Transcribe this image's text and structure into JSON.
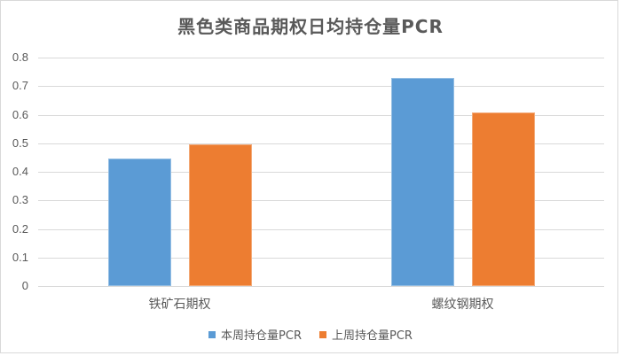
{
  "chart_data": {
    "type": "bar",
    "title": "黑色类商品期权日均持仓量PCR",
    "categories": [
      "铁矿石期权",
      "螺纹钢期权"
    ],
    "series": [
      {
        "name": "本周持仓量PCR",
        "color": "#5B9BD5",
        "values": [
          0.447,
          0.729
        ]
      },
      {
        "name": "上周持仓量PCR",
        "color": "#ED7D31",
        "values": [
          0.495,
          0.607
        ]
      }
    ],
    "xlabel": "",
    "ylabel": "",
    "ylim": [
      0,
      0.8
    ],
    "yticks": [
      "0",
      "0.1",
      "0.2",
      "0.3",
      "0.4",
      "0.5",
      "0.6",
      "0.7",
      "0.8"
    ],
    "grid": true,
    "legend_position": "bottom"
  },
  "title": "黑色类商品期权日均持仓量PCR",
  "legend": {
    "items": [
      {
        "label": "本周持仓量PCR",
        "color": "#5B9BD5"
      },
      {
        "label": "上周持仓量PCR",
        "color": "#ED7D31"
      }
    ]
  }
}
